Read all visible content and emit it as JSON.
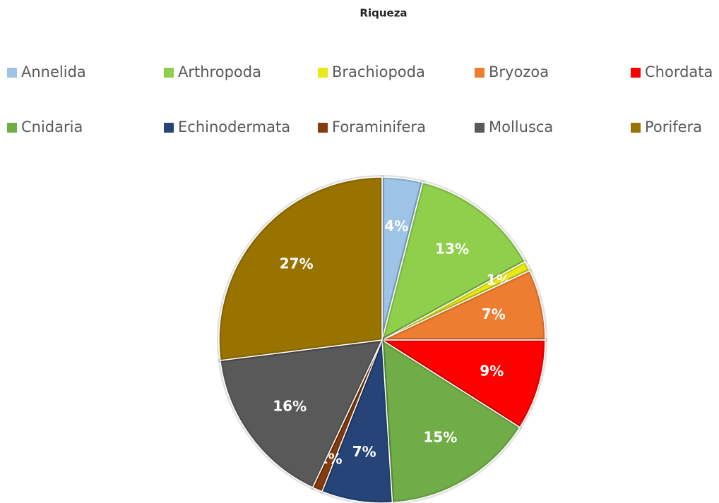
{
  "chart_data": {
    "type": "pie",
    "title": "Riqueza",
    "categories": [
      "Annelida",
      "Arthropoda",
      "Brachiopoda",
      "Bryozoa",
      "Chordata",
      "Cnidaria",
      "Echinodermata",
      "Foraminifera",
      "Mollusca",
      "Porifera"
    ],
    "values": [
      4,
      13,
      1,
      7,
      9,
      15,
      7,
      1,
      16,
      27
    ],
    "colors": [
      "#9dc3e6",
      "#8fcf4c",
      "#e8e81a",
      "#ed7d31",
      "#ff0000",
      "#70ad47",
      "#264478",
      "#843c0c",
      "#595959",
      "#997300"
    ],
    "legend": "top"
  }
}
